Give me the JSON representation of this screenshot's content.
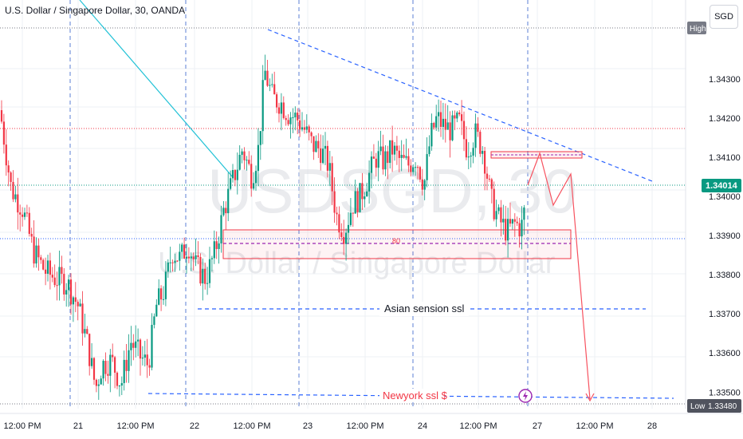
{
  "header": {
    "title": "U.S. Dollar / Singapore Dollar, 30, OANDA",
    "currency_button": "SGD"
  },
  "watermark": {
    "symbol": "USDSGD, 30",
    "name": "U.S. Dollar / Singapore Dollar"
  },
  "badges": {
    "high_label": "High",
    "low_label": "Low",
    "low_value": "1.33480",
    "current_value": "1.34014"
  },
  "annotations": {
    "asian_ssl": "Asian sension ssl",
    "newyork_ssl": "Newyork ssl $",
    "zone_label": "80"
  },
  "colors": {
    "up": "#089981",
    "down": "#f23645",
    "trend": "#2962ff",
    "diag": "#22c2d6",
    "projection": "#f7525f",
    "lightning": "#9c27b0"
  },
  "chart_data": {
    "type": "candlestick",
    "title": "U.S. Dollar / Singapore Dollar, 30, OANDA",
    "y_axis": {
      "min": 1.3347,
      "max": 1.3443,
      "ticks": [
        "1.34300",
        "1.34200",
        "1.34100",
        "1.34000",
        "1.33900",
        "1.33800",
        "1.33700",
        "1.33600",
        "1.33500"
      ]
    },
    "x_axis": {
      "ticks": [
        "12:00 PM",
        "21",
        "12:00 PM",
        "22",
        "12:00 PM",
        "23",
        "12:00 PM",
        "24",
        "12:00 PM",
        "27",
        "12:00 PM",
        "28"
      ]
    },
    "key_prices": {
      "current": 1.34014,
      "high": 1.344,
      "low": 1.3348,
      "asian_ssl": 1.3372,
      "newyork_ssl": 1.3349,
      "resistance_line": 1.34146
    },
    "price_path": [
      [
        0,
        1.3422
      ],
      [
        14,
        1.3402
      ],
      [
        28,
        1.3397
      ],
      [
        42,
        1.3386
      ],
      [
        56,
        1.3381
      ],
      [
        70,
        1.3379
      ],
      [
        84,
        1.3378
      ],
      [
        98,
        1.3372
      ],
      [
        110,
        1.3362
      ],
      [
        120,
        1.3351
      ],
      [
        128,
        1.3357
      ],
      [
        140,
        1.3358
      ],
      [
        152,
        1.3352
      ],
      [
        164,
        1.3363
      ],
      [
        176,
        1.3359
      ],
      [
        186,
        1.3357
      ],
      [
        196,
        1.3372
      ],
      [
        206,
        1.3376
      ],
      [
        216,
        1.3386
      ],
      [
        226,
        1.3384
      ],
      [
        236,
        1.3388
      ],
      [
        246,
        1.3382
      ],
      [
        258,
        1.3379
      ],
      [
        270,
        1.3386
      ],
      [
        280,
        1.3396
      ],
      [
        292,
        1.3404
      ],
      [
        304,
        1.3412
      ],
      [
        316,
        1.3405
      ],
      [
        324,
        1.3412
      ],
      [
        332,
        1.3432
      ],
      [
        342,
        1.3425
      ],
      [
        352,
        1.3424
      ],
      [
        362,
        1.3421
      ],
      [
        372,
        1.342
      ],
      [
        382,
        1.3417
      ],
      [
        392,
        1.3413
      ],
      [
        402,
        1.3412
      ],
      [
        412,
        1.3408
      ],
      [
        422,
        1.3395
      ],
      [
        432,
        1.3391
      ],
      [
        442,
        1.3398
      ],
      [
        452,
        1.34
      ],
      [
        462,
        1.3405
      ],
      [
        472,
        1.341
      ],
      [
        482,
        1.3409
      ],
      [
        492,
        1.3412
      ],
      [
        502,
        1.3409
      ],
      [
        512,
        1.3408
      ],
      [
        522,
        1.341
      ],
      [
        532,
        1.3403
      ],
      [
        540,
        1.3415
      ],
      [
        548,
        1.342
      ],
      [
        556,
        1.3418
      ],
      [
        566,
        1.3417
      ],
      [
        576,
        1.3419
      ],
      [
        586,
        1.3412
      ],
      [
        596,
        1.3416
      ],
      [
        606,
        1.3412
      ],
      [
        616,
        1.3399
      ],
      [
        626,
        1.3394
      ],
      [
        636,
        1.3391
      ],
      [
        646,
        1.3393
      ],
      [
        654,
        1.3392
      ],
      [
        662,
        1.3401
      ]
    ]
  }
}
